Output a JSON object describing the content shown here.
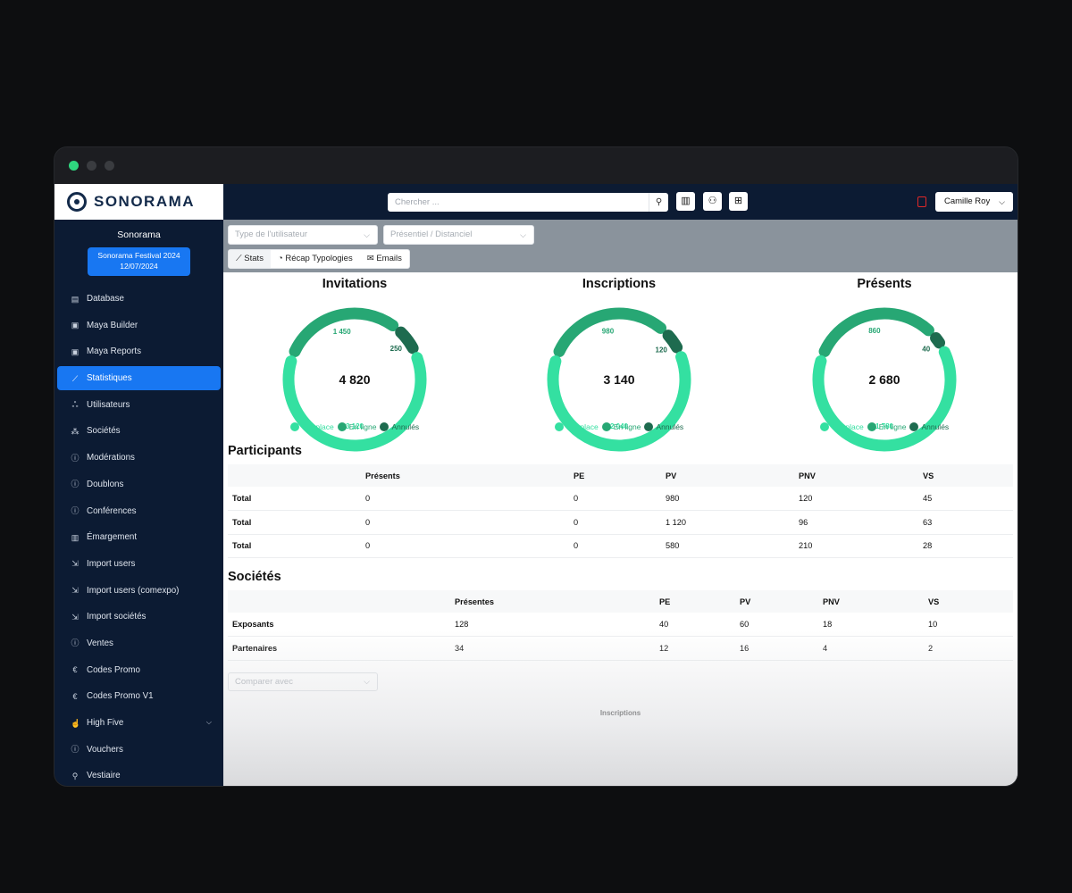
{
  "window": {
    "title_dots": [
      "close",
      "minimize",
      "maximize"
    ]
  },
  "brand": {
    "logo_text": "SONORAMA",
    "org_name": "Sonorama",
    "event_line1": "Sonorama Festival 2024",
    "event_line2": "12/07/2024"
  },
  "sidebar": {
    "items": [
      {
        "label": "Database",
        "icon": "database-icon",
        "glyph": "▤"
      },
      {
        "label": "Maya Builder",
        "icon": "builder-icon",
        "glyph": "▣"
      },
      {
        "label": "Maya Reports",
        "icon": "reports-icon",
        "glyph": "▣"
      },
      {
        "label": "Statistiques",
        "icon": "chart-icon",
        "glyph": "⟋"
      },
      {
        "label": "Utilisateurs",
        "icon": "users-icon",
        "glyph": "ஃ"
      },
      {
        "label": "Sociétés",
        "icon": "org-icon",
        "glyph": "⁂"
      },
      {
        "label": "Modérations",
        "icon": "info-icon",
        "glyph": "ⓘ"
      },
      {
        "label": "Doublons",
        "icon": "info-icon",
        "glyph": "ⓘ"
      },
      {
        "label": "Conférences",
        "icon": "info-icon",
        "glyph": "ⓘ"
      },
      {
        "label": "Émargement",
        "icon": "barcode-icon",
        "glyph": "▥"
      },
      {
        "label": "Import users",
        "icon": "import-icon",
        "glyph": "⇲"
      },
      {
        "label": "Import users (comexpo)",
        "icon": "import-icon",
        "glyph": "⇲"
      },
      {
        "label": "Import sociétés",
        "icon": "import-icon",
        "glyph": "⇲"
      },
      {
        "label": "Ventes",
        "icon": "info-icon",
        "glyph": "ⓘ"
      },
      {
        "label": "Codes Promo",
        "icon": "euro-icon",
        "glyph": "€"
      },
      {
        "label": "Codes Promo V1",
        "icon": "euro-icon",
        "glyph": "€"
      },
      {
        "label": "High Five",
        "icon": "thumb-icon",
        "glyph": "☝"
      },
      {
        "label": "Vouchers",
        "icon": "info-icon",
        "glyph": "ⓘ"
      },
      {
        "label": "Vestiaire",
        "icon": "search-icon",
        "glyph": "⚲"
      }
    ],
    "active_index": 3,
    "expandable_label": "High Five"
  },
  "topbar": {
    "search_placeholder": "Chercher ...",
    "user_name": "Camille Roy"
  },
  "filters": {
    "user_type_placeholder": "Type de l'utilisateur",
    "mode_placeholder": "Présentiel / Distanciel",
    "tabs": [
      "Stats",
      "Récap Typologies",
      "Emails"
    ]
  },
  "colors": {
    "sur_place": "#34e0a1",
    "en_ligne": "#27a774",
    "annules": "#1e6b4f",
    "accent": "#1877f2",
    "navy": "#0c1b33"
  },
  "chart_data": [
    {
      "type": "pie",
      "title": "Invitations",
      "total_label": "4 820",
      "labels": [
        "Sur place",
        "En ligne",
        "Annulés"
      ],
      "values": [
        3120,
        1450,
        250
      ],
      "value_labels": [
        "3 120",
        "1 450",
        "250"
      ]
    },
    {
      "type": "pie",
      "title": "Inscriptions",
      "total_label": "3 140",
      "labels": [
        "Sur place",
        "En ligne",
        "Annulés"
      ],
      "values": [
        2040,
        980,
        120
      ],
      "value_labels": [
        "2 040",
        "980",
        "120"
      ]
    },
    {
      "type": "pie",
      "title": "Présents",
      "total_label": "2 680",
      "labels": [
        "Sur place",
        "En ligne",
        "Annulés"
      ],
      "values": [
        1780,
        860,
        40
      ],
      "value_labels": [
        "1 780",
        "860",
        "40"
      ]
    }
  ],
  "participants": {
    "title": "Participants",
    "headers": [
      "",
      "Présents",
      "PE",
      "PV",
      "PNV",
      "VS"
    ],
    "rows": [
      [
        "Total",
        "0",
        "0",
        "980",
        "120",
        "45"
      ],
      [
        "Total",
        "0",
        "0",
        "1 120",
        "96",
        "63"
      ],
      [
        "Total",
        "0",
        "0",
        "580",
        "210",
        "28"
      ]
    ]
  },
  "societes": {
    "title": "Sociétés",
    "headers": [
      "",
      "Présentes",
      "PE",
      "PV",
      "PNV",
      "VS"
    ],
    "rows": [
      [
        "Exposants",
        "128",
        "40",
        "60",
        "18",
        "10"
      ],
      [
        "Partenaires",
        "34",
        "12",
        "16",
        "4",
        "2"
      ]
    ]
  },
  "compare": {
    "placeholder": "Comparer avec",
    "chart_caption": "Inscriptions"
  }
}
